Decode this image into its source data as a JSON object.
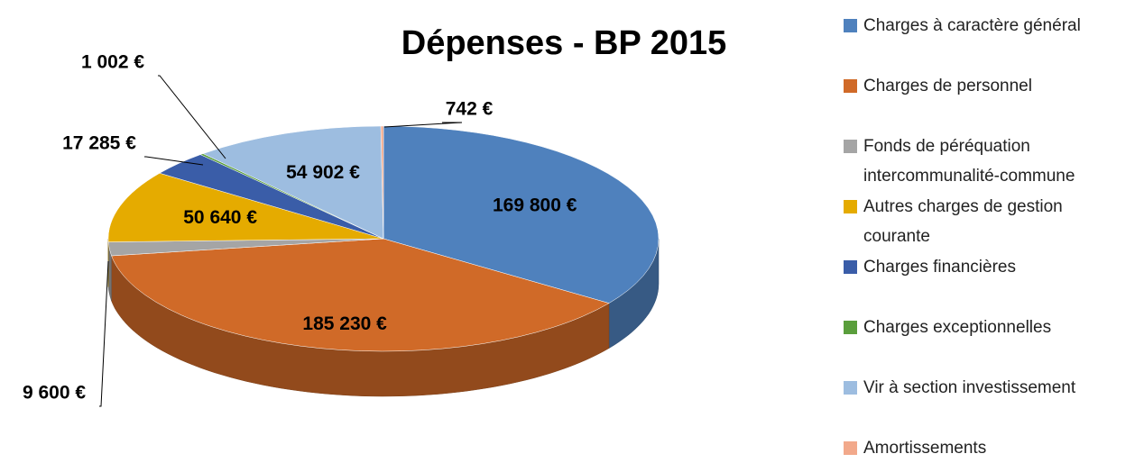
{
  "chart_data": {
    "type": "pie",
    "title": "Dépenses - BP 2015",
    "categories": [
      "Charges à caractère général",
      "Charges de personnel",
      "Fonds de péréquation intercommunalité-commune",
      "Autres charges de gestion courante",
      "Charges financières",
      "Charges exceptionnelles",
      "Vir à section investissement",
      "Amortissements"
    ],
    "values": [
      169800,
      185230,
      9600,
      50640,
      17285,
      1002,
      54902,
      742
    ],
    "value_labels": [
      "169 800 €",
      "185 230 €",
      "9 600 €",
      "50 640 €",
      "17 285 €",
      "1 002 €",
      "54 902 €",
      "742 €"
    ],
    "colors": [
      "#4f81bd",
      "#d06a28",
      "#a5a5a5",
      "#e5ab00",
      "#3a5da8",
      "#5a9e3c",
      "#9dbde0",
      "#f2a98b"
    ],
    "legend": "right"
  }
}
